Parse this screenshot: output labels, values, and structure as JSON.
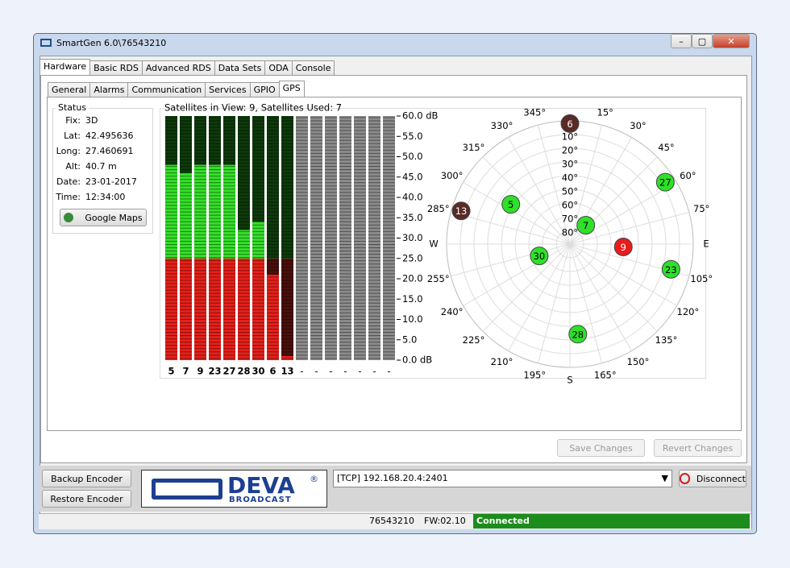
{
  "window": {
    "title": "SmartGen 6.0\\76543210"
  },
  "tabs": [
    "Hardware",
    "Basic RDS",
    "Advanced RDS",
    "Data Sets",
    "ODA",
    "Console"
  ],
  "subtabs": [
    "General",
    "Alarms",
    "Communication",
    "Services",
    "GPIO",
    "GPS"
  ],
  "status": {
    "title": "Status",
    "fields": [
      {
        "label": "Fix:",
        "value": "3D"
      },
      {
        "label": "Lat:",
        "value": "42.495636"
      },
      {
        "label": "Long:",
        "value": "27.460691"
      },
      {
        "label": "Alt:",
        "value": "40.7 m"
      },
      {
        "label": "Date:",
        "value": "23-01-2017"
      },
      {
        "label": "Time:",
        "value": "12:34:00"
      }
    ],
    "button": "Google Maps"
  },
  "chart_data": [
    {
      "type": "bar",
      "title": "Satellites in View: 9, Satellites Used: 7",
      "categories": [
        "5",
        "7",
        "9",
        "23",
        "27",
        "28",
        "30",
        "6",
        "13",
        "-",
        "-",
        "-",
        "-",
        "-",
        "-",
        "-"
      ],
      "values": [
        48,
        46,
        48,
        48,
        48,
        32,
        34,
        21,
        1,
        null,
        null,
        null,
        null,
        null,
        null,
        null
      ],
      "ylim": [
        0,
        60
      ],
      "yticks": [
        {
          "value": 60,
          "label": "60.0 dB"
        },
        {
          "value": 55,
          "label": "55.0"
        },
        {
          "value": 50,
          "label": "50.0"
        },
        {
          "value": 45,
          "label": "45.0"
        },
        {
          "value": 40,
          "label": "40.0"
        },
        {
          "value": 35,
          "label": "35.0"
        },
        {
          "value": 30,
          "label": "30.0"
        },
        {
          "value": 25,
          "label": "25.0"
        },
        {
          "value": 20,
          "label": "20.0"
        },
        {
          "value": 15,
          "label": "15.0"
        },
        {
          "value": 10,
          "label": "10.0"
        },
        {
          "value": 5,
          "label": "5.0"
        },
        {
          "value": 0,
          "label": "0.0 dB"
        }
      ],
      "threshold": 25,
      "high_color": "#35e02a",
      "low_color": "#e8201a",
      "high_dark_color": "#0d3a0b",
      "low_dark_color": "#4a0f0c",
      "empty_color": "#8c8c8c"
    },
    {
      "type": "polar",
      "rlim": [
        90,
        0
      ],
      "elevation_ticks": [
        {
          "value": 10,
          "label": "10°"
        },
        {
          "value": 20,
          "label": "20°"
        },
        {
          "value": 30,
          "label": "30°"
        },
        {
          "value": 40,
          "label": "40°"
        },
        {
          "value": 50,
          "label": "50°"
        },
        {
          "value": 60,
          "label": "60°"
        },
        {
          "value": 70,
          "label": "70°"
        },
        {
          "value": 80,
          "label": "80°"
        }
      ],
      "azimuth_ticks": [
        {
          "value": 15,
          "label": "15°"
        },
        {
          "value": 30,
          "label": "30°"
        },
        {
          "value": 45,
          "label": "45°"
        },
        {
          "value": 60,
          "label": "60°"
        },
        {
          "value": 75,
          "label": "75°"
        },
        {
          "value": 90,
          "label": "E"
        },
        {
          "value": 105,
          "label": "105°"
        },
        {
          "value": 120,
          "label": "120°"
        },
        {
          "value": 135,
          "label": "135°"
        },
        {
          "value": 150,
          "label": "150°"
        },
        {
          "value": 165,
          "label": "165°"
        },
        {
          "value": 180,
          "label": "S"
        },
        {
          "value": 195,
          "label": "195°"
        },
        {
          "value": 210,
          "label": "210°"
        },
        {
          "value": 225,
          "label": "225°"
        },
        {
          "value": 240,
          "label": "240°"
        },
        {
          "value": 255,
          "label": "255°"
        },
        {
          "value": 270,
          "label": "W"
        },
        {
          "value": 285,
          "label": "285°"
        },
        {
          "value": 300,
          "label": "300°"
        },
        {
          "value": 315,
          "label": "315°"
        },
        {
          "value": 330,
          "label": "330°"
        },
        {
          "value": 345,
          "label": "345°"
        }
      ],
      "satellites": [
        {
          "label": "6",
          "azimuth": 0,
          "elevation": 2,
          "color": "#5a2a26"
        },
        {
          "label": "27",
          "azimuth": 57,
          "elevation": 7,
          "color": "#2ee02a"
        },
        {
          "label": "5",
          "azimuth": 304,
          "elevation": 38,
          "color": "#2ee02a"
        },
        {
          "label": "13",
          "azimuth": 287,
          "elevation": 7,
          "color": "#5a2a26"
        },
        {
          "label": "7",
          "azimuth": 40,
          "elevation": 72,
          "color": "#2ee02a"
        },
        {
          "label": "9",
          "azimuth": 93,
          "elevation": 51,
          "color": "#e81c1c"
        },
        {
          "label": "30",
          "azimuth": 249,
          "elevation": 66,
          "color": "#2ee02a"
        },
        {
          "label": "23",
          "azimuth": 104,
          "elevation": 14,
          "color": "#2ee02a"
        },
        {
          "label": "28",
          "azimuth": 175,
          "elevation": 24,
          "color": "#2ee02a"
        }
      ]
    }
  ],
  "buttons": {
    "save": "Save Changes",
    "revert": "Revert Changes",
    "backup": "Backup Encoder",
    "restore": "Restore Encoder",
    "disconnect": "Disconnect"
  },
  "logo": {
    "name": "DEVA",
    "sub": "BROADCAST",
    "mark": "®"
  },
  "connection": "[TCP] 192.168.20.4:2401",
  "statusbar": {
    "serial": "76543210",
    "firmware": "FW:02.10",
    "state": "Connected"
  }
}
